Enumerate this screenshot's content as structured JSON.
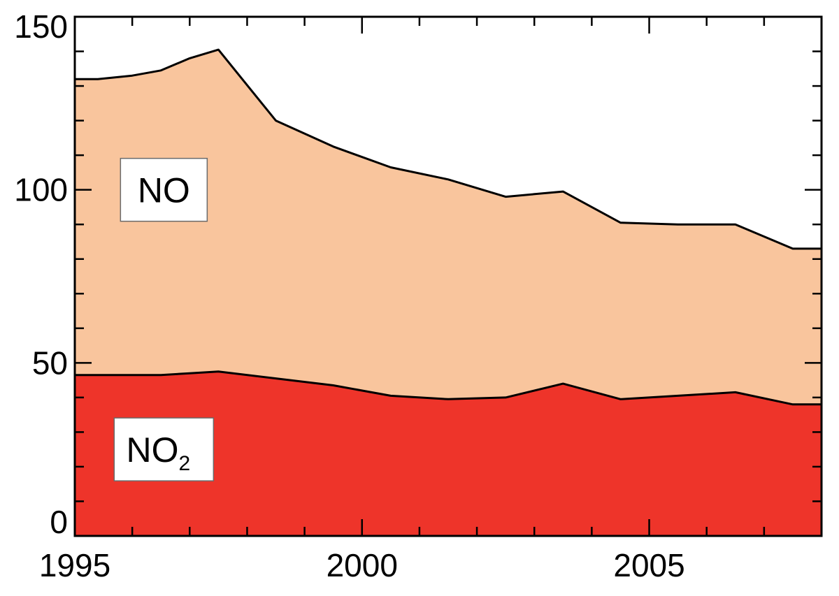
{
  "chart_data": {
    "type": "area",
    "stacked": true,
    "x": [
      1995,
      1995.4,
      1996,
      1996.5,
      1997,
      1997.5,
      1998.5,
      1999.5,
      2000.5,
      2001.5,
      2002.5,
      2003.5,
      2004.5,
      2005.5,
      2006.5,
      2007.5,
      2008
    ],
    "series": [
      {
        "name": "NO2",
        "label_main": "NO",
        "label_sub": "2",
        "color": "#ee342a",
        "values": [
          46.5,
          46.5,
          46.5,
          46.5,
          47,
          47.5,
          45.5,
          43.5,
          40.5,
          39.5,
          40,
          44,
          39.5,
          40.5,
          41.5,
          38,
          38
        ]
      },
      {
        "name": "NO",
        "label_main": "NO",
        "label_sub": "",
        "color": "#f9c59d",
        "values": [
          85.5,
          85.5,
          86.5,
          88,
          91,
          93,
          74.5,
          69,
          66,
          63.5,
          58,
          55.5,
          51,
          49.5,
          48.5,
          45,
          45
        ]
      }
    ],
    "xlim": [
      1995,
      2008
    ],
    "ylim": [
      0,
      150
    ],
    "x_ticks": [
      1995,
      2000,
      2005
    ],
    "x_tick_labels": [
      "1995",
      "2000",
      "2005"
    ],
    "x_minor_step": 1,
    "y_ticks": [
      0,
      50,
      100,
      150
    ],
    "y_tick_labels": [
      "0",
      "50",
      "100",
      "150"
    ],
    "y_minor_step": 10,
    "title": "",
    "xlabel": "",
    "ylabel": "",
    "grid": false,
    "legend": "inline labels"
  }
}
